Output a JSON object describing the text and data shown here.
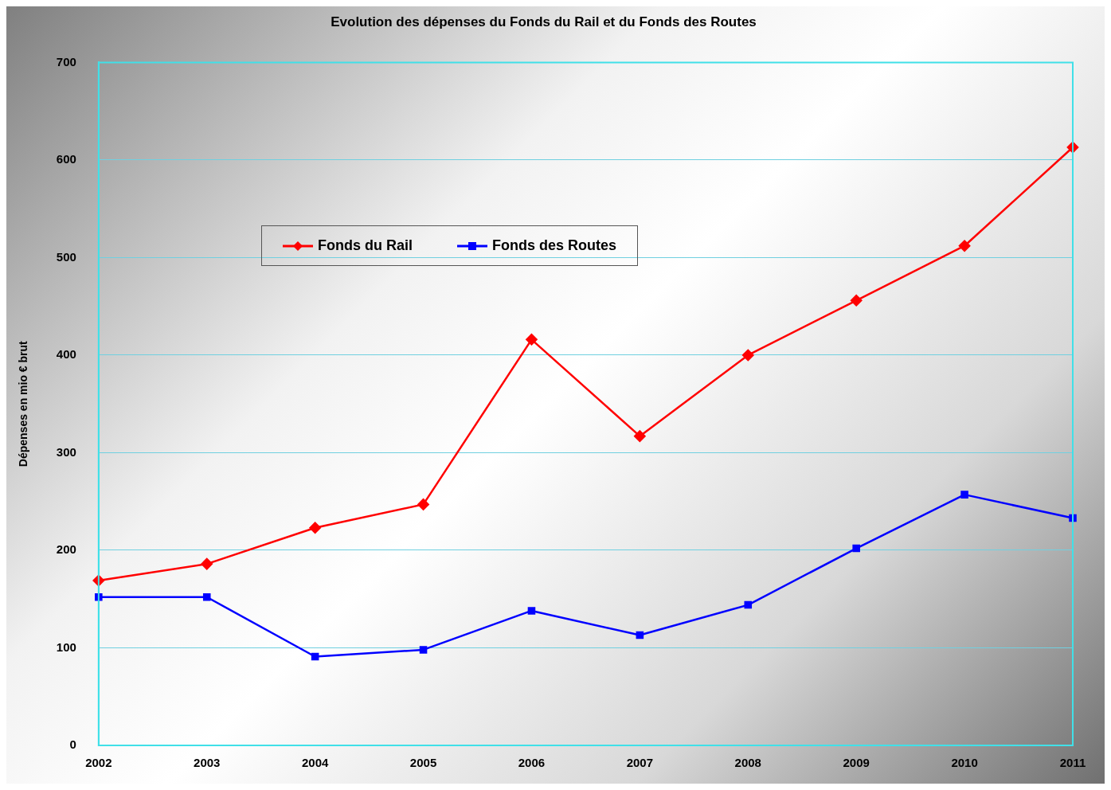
{
  "chart_data": {
    "type": "line",
    "title": "Evolution des dépenses du Fonds du Rail et du Fonds des Routes",
    "ylabel": "Dépenses en mio € brut",
    "categories": [
      "2002",
      "2003",
      "2004",
      "2005",
      "2006",
      "2007",
      "2008",
      "2009",
      "2010",
      "2011"
    ],
    "series": [
      {
        "name": "Fonds du Rail",
        "color": "#ff0000",
        "marker": "diamond",
        "values": [
          169,
          186,
          223,
          247,
          416,
          317,
          400,
          456,
          512,
          613
        ]
      },
      {
        "name": "Fonds des Routes",
        "color": "#0000ff",
        "marker": "square",
        "values": [
          152,
          152,
          91,
          98,
          138,
          113,
          144,
          202,
          257,
          233
        ]
      }
    ],
    "ylim": [
      0,
      700
    ],
    "yticks": [
      0,
      100,
      200,
      300,
      400,
      500,
      600,
      700
    ],
    "grid": "y",
    "legend": "top left"
  }
}
